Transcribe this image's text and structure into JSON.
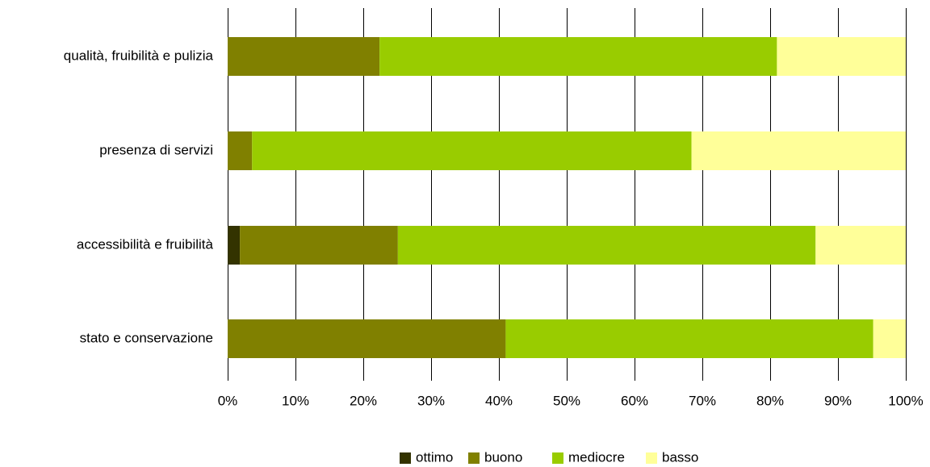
{
  "chart_data": {
    "type": "bar",
    "orientation": "horizontal",
    "stacked": "percent",
    "title": "",
    "xlabel": "",
    "ylabel": "",
    "categories": [
      "qualità, fruibilità e pulizia",
      "presenza di servizi",
      "accessibilità e fruibilità",
      "stato e conservazione"
    ],
    "series": [
      {
        "name": "ottimo",
        "color": "#333300",
        "values": [
          0.0,
          0.0,
          1.8,
          0.0
        ]
      },
      {
        "name": "buono",
        "color": "#808000",
        "values": [
          22.4,
          3.6,
          23.3,
          41.0
        ]
      },
      {
        "name": "mediocre",
        "color": "#99CC00",
        "values": [
          58.6,
          64.8,
          61.6,
          54.2
        ]
      },
      {
        "name": "basso",
        "color": "#FFFF99",
        "values": [
          19.0,
          31.6,
          13.3,
          4.8
        ]
      }
    ],
    "xlim": [
      0,
      100
    ],
    "xticks": [
      "0%",
      "10%",
      "20%",
      "30%",
      "40%",
      "50%",
      "60%",
      "70%",
      "80%",
      "90%",
      "100%"
    ],
    "grid": "vertical",
    "legend_position": "bottom"
  }
}
